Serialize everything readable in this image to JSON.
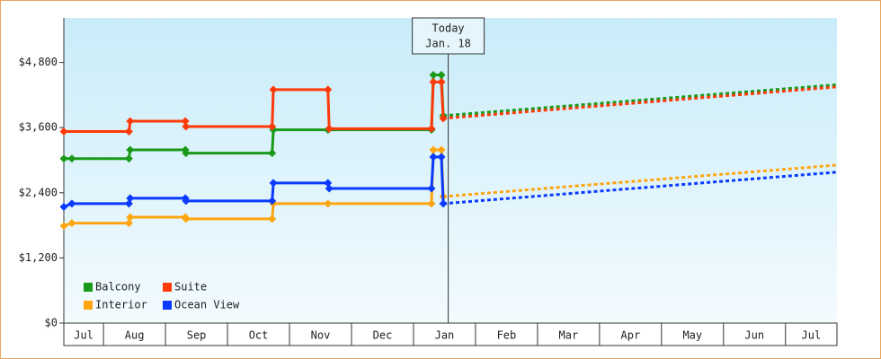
{
  "chart_data": {
    "type": "line",
    "ylim": [
      0,
      5620
    ],
    "yticks": [
      {
        "value": 0,
        "label": "$0"
      },
      {
        "value": 1200,
        "label": "$1,200"
      },
      {
        "value": 2400,
        "label": "$2,400"
      },
      {
        "value": 3600,
        "label": "$3,600"
      },
      {
        "value": 4800,
        "label": "$4,800"
      }
    ],
    "xlim": [
      0.36,
      12.83
    ],
    "xticks": [
      1,
      2,
      3,
      4,
      5,
      6,
      7,
      8,
      9,
      10,
      11,
      12
    ],
    "months": [
      "Jul",
      "Aug",
      "Sep",
      "Oct",
      "Nov",
      "Dec",
      "Jan",
      "Feb",
      "Mar",
      "Apr",
      "May",
      "Jun",
      "Jul"
    ],
    "grid": false,
    "legend": "lower left",
    "today": {
      "lines": [
        "Today",
        "Jan. 18"
      ],
      "x": 6.56
    },
    "series": [
      {
        "name": "Balcony",
        "color": "#1a9a1a",
        "x": [
          0.36,
          0.49,
          1.41,
          1.43,
          2.32,
          2.33,
          3.72,
          3.74,
          4.62,
          6.29,
          6.32,
          6.45,
          6.48
        ],
        "values": [
          3030,
          3030,
          3030,
          3190,
          3190,
          3130,
          3130,
          3560,
          3560,
          3560,
          4570,
          4570,
          3820
        ],
        "forecast": {
          "x": [
            6.48,
            12.83
          ],
          "values": [
            3820,
            4390
          ]
        }
      },
      {
        "name": "Suite",
        "color": "#ff3a0a",
        "x": [
          0.36,
          1.41,
          1.43,
          2.32,
          2.33,
          3.72,
          3.74,
          4.62,
          4.64,
          6.29,
          6.32,
          6.45,
          6.48
        ],
        "values": [
          3530,
          3530,
          3720,
          3720,
          3620,
          3620,
          4300,
          4300,
          3580,
          3580,
          4440,
          4440,
          3770
        ],
        "forecast": {
          "x": [
            6.48,
            12.83
          ],
          "values": [
            3770,
            4350
          ]
        }
      },
      {
        "name": "Interior",
        "color": "#ffa510",
        "x": [
          0.36,
          0.49,
          1.41,
          1.43,
          2.32,
          2.33,
          3.72,
          3.74,
          4.62,
          6.29,
          6.32,
          6.45,
          6.48
        ],
        "values": [
          1790,
          1840,
          1840,
          1950,
          1950,
          1920,
          1920,
          2200,
          2200,
          2200,
          3190,
          3190,
          2330
        ],
        "forecast": {
          "x": [
            6.48,
            12.83
          ],
          "values": [
            2330,
            2910
          ]
        }
      },
      {
        "name": "Ocean View",
        "color": "#0a3aff",
        "x": [
          0.36,
          0.49,
          1.41,
          1.43,
          2.32,
          2.33,
          3.72,
          3.74,
          4.62,
          4.64,
          6.29,
          6.32,
          6.45,
          6.48
        ],
        "values": [
          2140,
          2200,
          2200,
          2300,
          2300,
          2250,
          2250,
          2580,
          2580,
          2480,
          2480,
          3060,
          3060,
          2200
        ],
        "forecast": {
          "x": [
            6.48,
            12.83
          ],
          "values": [
            2200,
            2780
          ]
        }
      }
    ]
  }
}
